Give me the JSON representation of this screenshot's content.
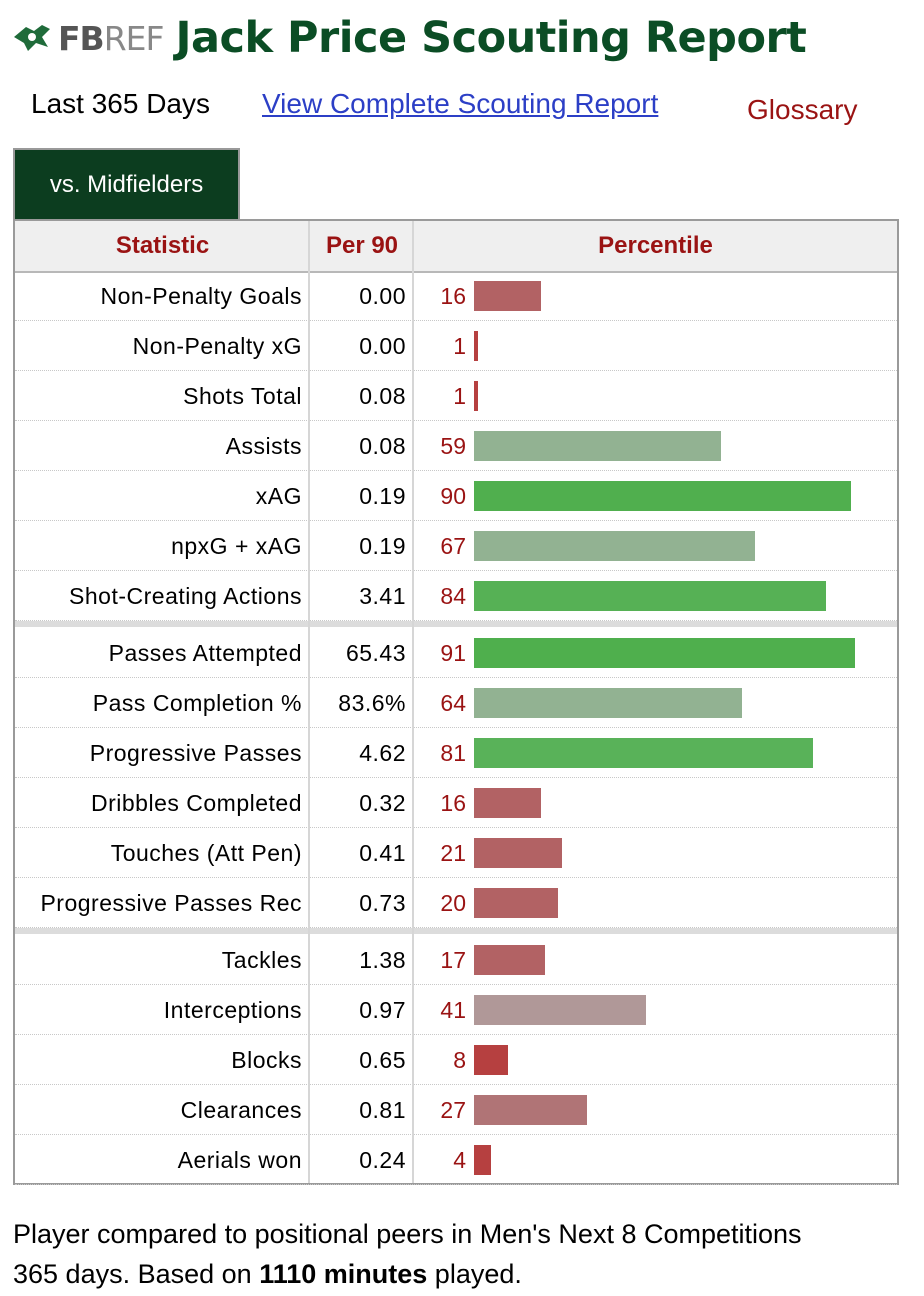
{
  "header": {
    "logo_fb": "FB",
    "logo_ref": "REF",
    "title": "Jack Price Scouting Report"
  },
  "subnav": {
    "period": "Last 365 Days",
    "complete_link": "View Complete Scouting Report",
    "glossary": "Glossary"
  },
  "tab": {
    "label": "vs. Midfielders"
  },
  "table": {
    "headers": [
      "Statistic",
      "Per 90",
      "Percentile"
    ],
    "groups": [
      [
        {
          "stat": "Non-Penalty Goals",
          "per90": "0.00",
          "pct": 16
        },
        {
          "stat": "Non-Penalty xG",
          "per90": "0.00",
          "pct": 1
        },
        {
          "stat": "Shots Total",
          "per90": "0.08",
          "pct": 1
        },
        {
          "stat": "Assists",
          "per90": "0.08",
          "pct": 59
        },
        {
          "stat": "xAG",
          "per90": "0.19",
          "pct": 90
        },
        {
          "stat": "npxG + xAG",
          "per90": "0.19",
          "pct": 67
        },
        {
          "stat": "Shot-Creating Actions",
          "per90": "3.41",
          "pct": 84
        }
      ],
      [
        {
          "stat": "Passes Attempted",
          "per90": "65.43",
          "pct": 91
        },
        {
          "stat": "Pass Completion %",
          "per90": "83.6%",
          "pct": 64
        },
        {
          "stat": "Progressive Passes",
          "per90": "4.62",
          "pct": 81
        },
        {
          "stat": "Dribbles Completed",
          "per90": "0.32",
          "pct": 16
        },
        {
          "stat": "Touches (Att Pen)",
          "per90": "0.41",
          "pct": 21
        },
        {
          "stat": "Progressive Passes Rec",
          "per90": "0.73",
          "pct": 20
        }
      ],
      [
        {
          "stat": "Tackles",
          "per90": "1.38",
          "pct": 17
        },
        {
          "stat": "Interceptions",
          "per90": "0.97",
          "pct": 41
        },
        {
          "stat": "Blocks",
          "per90": "0.65",
          "pct": 8
        },
        {
          "stat": "Clearances",
          "per90": "0.81",
          "pct": 27
        },
        {
          "stat": "Aerials won",
          "per90": "0.24",
          "pct": 4
        }
      ]
    ]
  },
  "footer": {
    "text_before": "Player compared to positional peers in Men's Next 8 Competitions",
    "text_line2": "365 days. Based on ",
    "minutes": "1110 minutes",
    "text_after": " played."
  },
  "colors": {
    "title_green": "#0b4d25",
    "tab_bg": "#0c3d1f",
    "header_red": "#9a1313",
    "link_blue": "#2c3fc6"
  }
}
